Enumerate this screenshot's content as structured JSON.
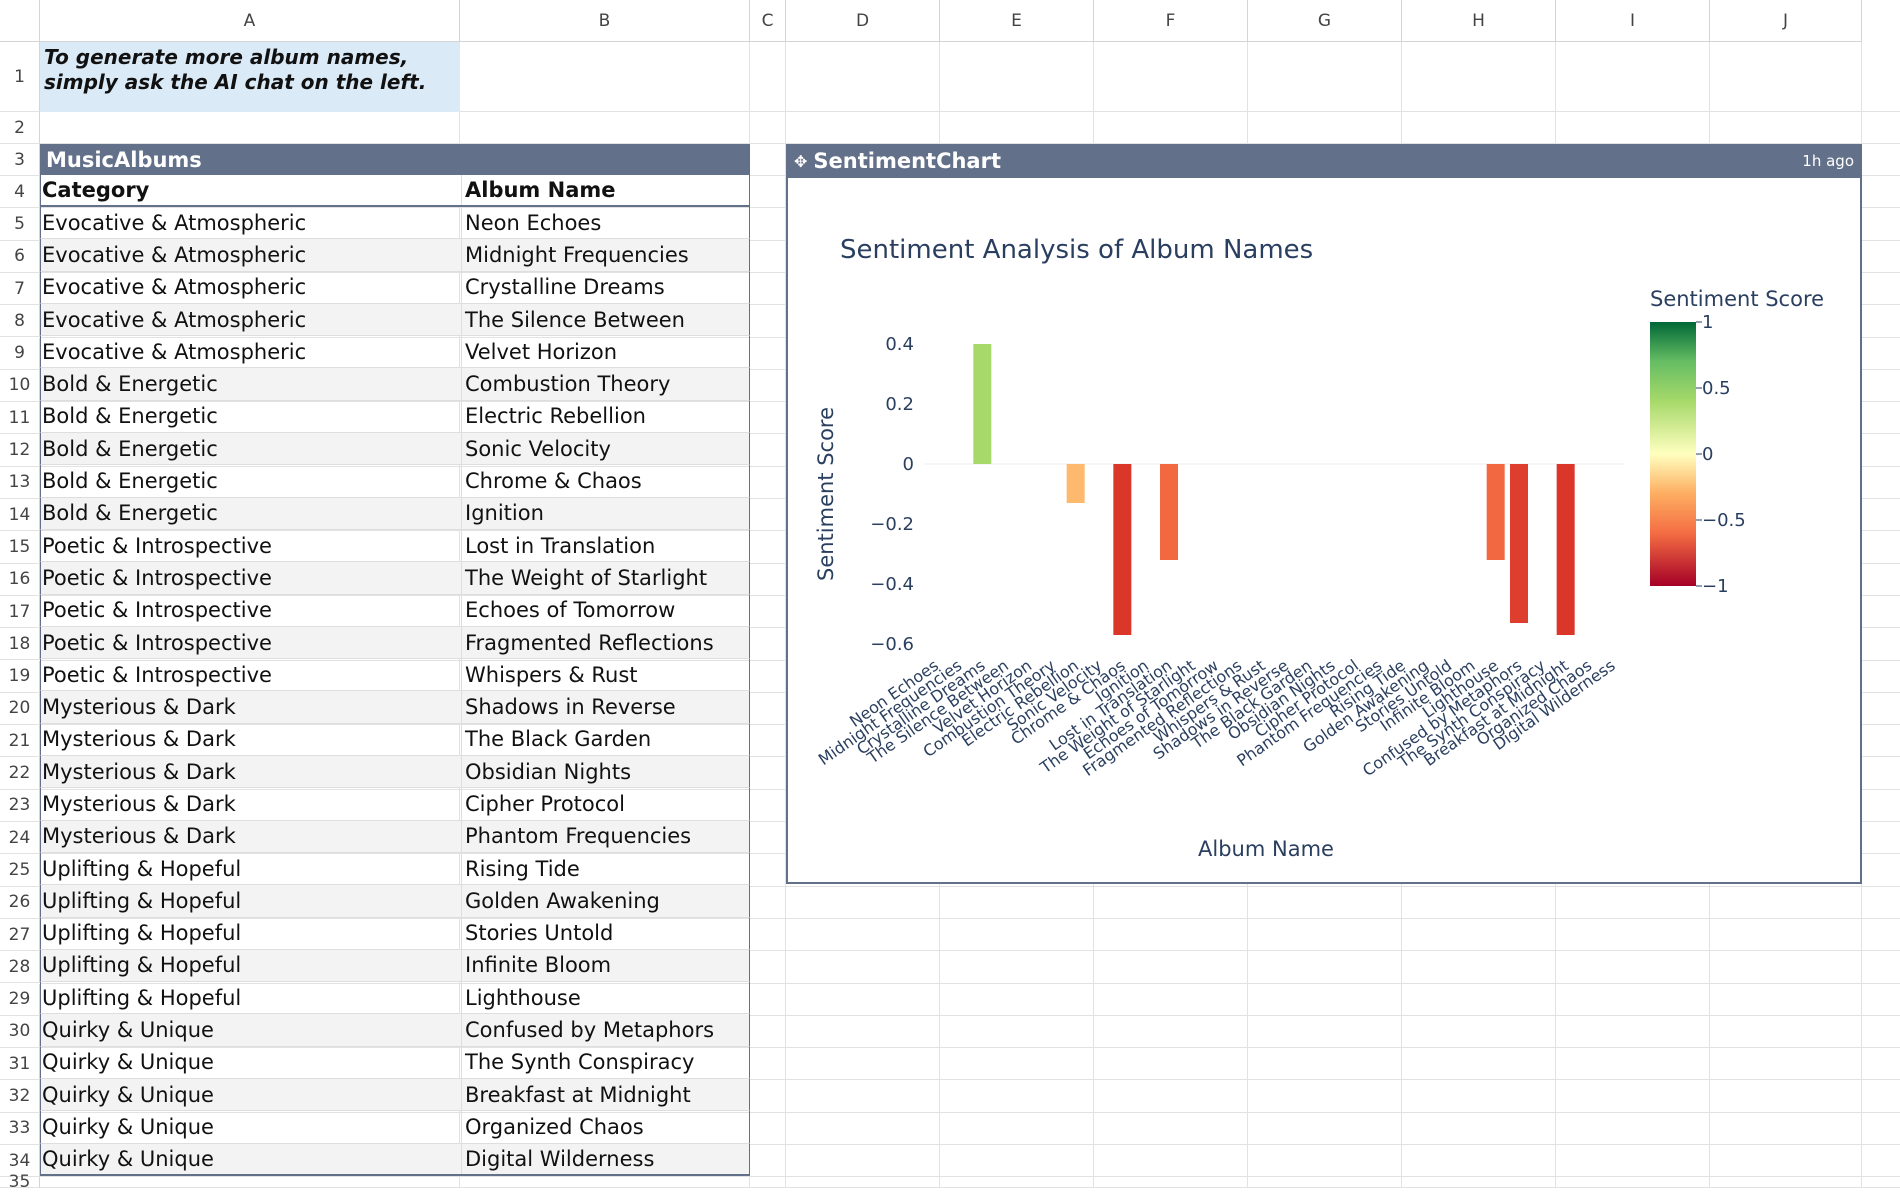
{
  "columns": [
    "A",
    "B",
    "C",
    "D",
    "E",
    "F",
    "G",
    "H",
    "I",
    "J"
  ],
  "rows": [
    "1",
    "2",
    "3",
    "4",
    "5",
    "6",
    "7",
    "8",
    "9",
    "10",
    "11",
    "12",
    "13",
    "14",
    "15",
    "16",
    "17",
    "18",
    "19",
    "20",
    "21",
    "22",
    "23",
    "24",
    "25",
    "26",
    "27",
    "28",
    "29",
    "30",
    "31",
    "32",
    "33",
    "34",
    "35"
  ],
  "note": "To generate more album names, simply ask the AI chat on the left.",
  "table": {
    "title": "MusicAlbums",
    "headers": [
      "Category",
      "Album Name"
    ],
    "rows": [
      [
        "Evocative & Atmospheric",
        "Neon Echoes"
      ],
      [
        "Evocative & Atmospheric",
        "Midnight Frequencies"
      ],
      [
        "Evocative & Atmospheric",
        "Crystalline Dreams"
      ],
      [
        "Evocative & Atmospheric",
        "The Silence Between"
      ],
      [
        "Evocative & Atmospheric",
        "Velvet Horizon"
      ],
      [
        "Bold & Energetic",
        "Combustion Theory"
      ],
      [
        "Bold & Energetic",
        "Electric Rebellion"
      ],
      [
        "Bold & Energetic",
        "Sonic Velocity"
      ],
      [
        "Bold & Energetic",
        "Chrome & Chaos"
      ],
      [
        "Bold & Energetic",
        "Ignition"
      ],
      [
        "Poetic & Introspective",
        "Lost in Translation"
      ],
      [
        "Poetic & Introspective",
        "The Weight of Starlight"
      ],
      [
        "Poetic & Introspective",
        "Echoes of Tomorrow"
      ],
      [
        "Poetic & Introspective",
        "Fragmented Reflections"
      ],
      [
        "Poetic & Introspective",
        "Whispers & Rust"
      ],
      [
        "Mysterious & Dark",
        "Shadows in Reverse"
      ],
      [
        "Mysterious & Dark",
        "The Black Garden"
      ],
      [
        "Mysterious & Dark",
        "Obsidian Nights"
      ],
      [
        "Mysterious & Dark",
        "Cipher Protocol"
      ],
      [
        "Mysterious & Dark",
        "Phantom Frequencies"
      ],
      [
        "Uplifting & Hopeful",
        "Rising Tide"
      ],
      [
        "Uplifting & Hopeful",
        "Golden Awakening"
      ],
      [
        "Uplifting & Hopeful",
        "Stories Untold"
      ],
      [
        "Uplifting & Hopeful",
        "Infinite Bloom"
      ],
      [
        "Uplifting & Hopeful",
        "Lighthouse"
      ],
      [
        "Quirky & Unique",
        "Confused by Metaphors"
      ],
      [
        "Quirky & Unique",
        "The Synth Conspiracy"
      ],
      [
        "Quirky & Unique",
        "Breakfast at Midnight"
      ],
      [
        "Quirky & Unique",
        "Organized Chaos"
      ],
      [
        "Quirky & Unique",
        "Digital Wilderness"
      ]
    ]
  },
  "chart_panel": {
    "title": "SentimentChart",
    "age": "1h ago",
    "icon": "plus-icon"
  },
  "chart_data": {
    "type": "bar",
    "title": "Sentiment Analysis of Album Names",
    "xlabel": "Album Name",
    "ylabel": "Sentiment Score",
    "ylim": [
      -0.6,
      0.4
    ],
    "yticks": [
      "0.4",
      "0.2",
      "0",
      "−0.2",
      "−0.4",
      "−0.6"
    ],
    "colorbar": {
      "title": "Sentiment Score",
      "range": [
        -1,
        1
      ],
      "ticks": [
        "1",
        "0.5",
        "0",
        "−0.5",
        "−1"
      ],
      "colorscale": "RdYlGn"
    },
    "categories": [
      "Neon Echoes",
      "Midnight Frequencies",
      "Crystalline Dreams",
      "The Silence Between",
      "Velvet Horizon",
      "Combustion Theory",
      "Electric Rebellion",
      "Sonic Velocity",
      "Chrome & Chaos",
      "Ignition",
      "Lost in Translation",
      "The Weight of Starlight",
      "Echoes of Tomorrow",
      "Fragmented Reflections",
      "Whispers & Rust",
      "Shadows in Reverse",
      "The Black Garden",
      "Obsidian Nights",
      "Cipher Protocol",
      "Phantom Frequencies",
      "Rising Tide",
      "Golden Awakening",
      "Stories Untold",
      "Infinite Bloom",
      "Lighthouse",
      "Confused by Metaphors",
      "The Synth Conspiracy",
      "Breakfast at Midnight",
      "Organized Chaos",
      "Digital Wilderness"
    ],
    "values": [
      0,
      0,
      0.4,
      0,
      0,
      0,
      -0.13,
      0,
      -0.57,
      0,
      -0.32,
      0,
      0,
      0,
      0,
      0,
      0,
      0,
      0,
      0,
      0,
      0,
      0,
      0,
      -0.32,
      -0.53,
      0,
      -0.57,
      0,
      0
    ]
  }
}
